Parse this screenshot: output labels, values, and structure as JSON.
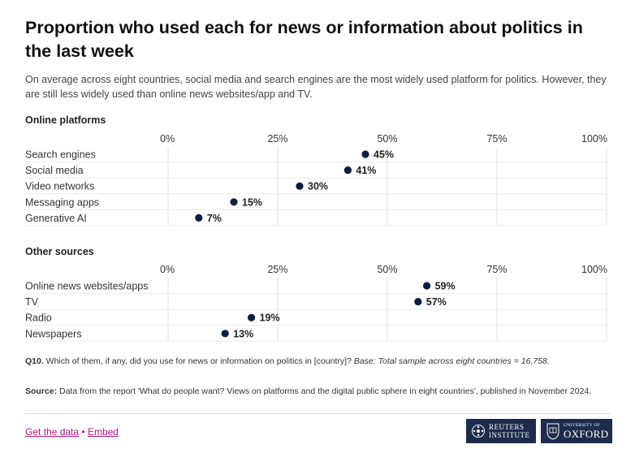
{
  "title": "Proportion who used each for news or information about politics in the last week",
  "subtitle": "On average across eight countries, social media and search engines are the most widely used platform for politics. However, they are still less widely used than online news websites/app and TV.",
  "chart_data": [
    {
      "type": "scatter",
      "title": "Online platforms",
      "xlim": [
        0,
        100
      ],
      "xticks": [
        "0%",
        "25%",
        "50%",
        "75%",
        "100%"
      ],
      "categories": [
        "Search engines",
        "Social media",
        "Video networks",
        "Messaging apps",
        "Generative AI"
      ],
      "values": [
        45,
        41,
        30,
        15,
        7
      ],
      "labels": [
        "45%",
        "41%",
        "30%",
        "15%",
        "7%"
      ],
      "marker_color": "#0f1e3c",
      "grid": true
    },
    {
      "type": "scatter",
      "title": "Other sources",
      "xlim": [
        0,
        100
      ],
      "xticks": [
        "0%",
        "25%",
        "50%",
        "75%",
        "100%"
      ],
      "categories": [
        "Online news websites/apps",
        "TV",
        "Radio",
        "Newspapers"
      ],
      "values": [
        59,
        57,
        19,
        13
      ],
      "labels": [
        "59%",
        "57%",
        "19%",
        "13%"
      ],
      "marker_color": "#0f1e3c",
      "grid": true
    }
  ],
  "footnote": {
    "label": "Q10.",
    "question": " Which of them, if any, did you use for news or information on politics in [country]? ",
    "base": "Base: Total sample across eight countries = 16,758."
  },
  "source": {
    "label": "Source:",
    "text": " Data from the report 'What do people want? Views on platforms and the digital public sphere in eight countries', published in November 2024."
  },
  "links": {
    "get_data": "Get the data",
    "separator": "•",
    "embed": "Embed"
  },
  "logos": {
    "reuters_line1": "REUTERS",
    "reuters_line2": "INSTITUTE",
    "oxford_small": "UNIVERSITY OF",
    "oxford_big": "OXFORD",
    "color": "#1e2b4d"
  }
}
